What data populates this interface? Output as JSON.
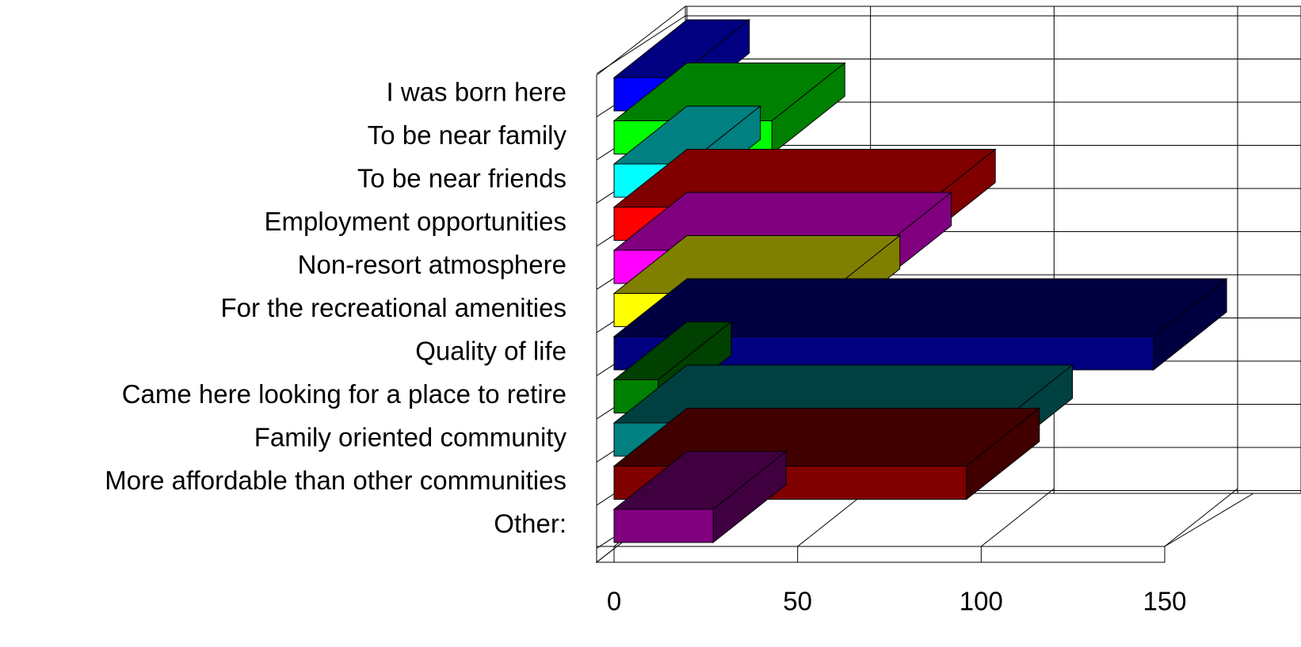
{
  "chart_data": {
    "type": "bar3d",
    "categories": [
      "I was born here",
      "To be near family",
      "To be near friends",
      "Employment opportunities",
      "Non-resort atmosphere",
      "For the recreational amenities",
      "Quality of life",
      "Came here looking for a place to retire",
      "Family oriented community",
      "More affordable than other communities",
      "Other:"
    ],
    "values": [
      17,
      43,
      20,
      84,
      72,
      58,
      147,
      12,
      105,
      96,
      27
    ],
    "colors": [
      "#0000ff",
      "#00ff00",
      "#00ffff",
      "#ff0000",
      "#ff00ff",
      "#ffff00",
      "#000080",
      "#008000",
      "#008080",
      "#800000",
      "#800080"
    ],
    "xlim": [
      0,
      150
    ],
    "xticks": [
      0,
      50,
      100,
      150
    ],
    "grid": true
  }
}
